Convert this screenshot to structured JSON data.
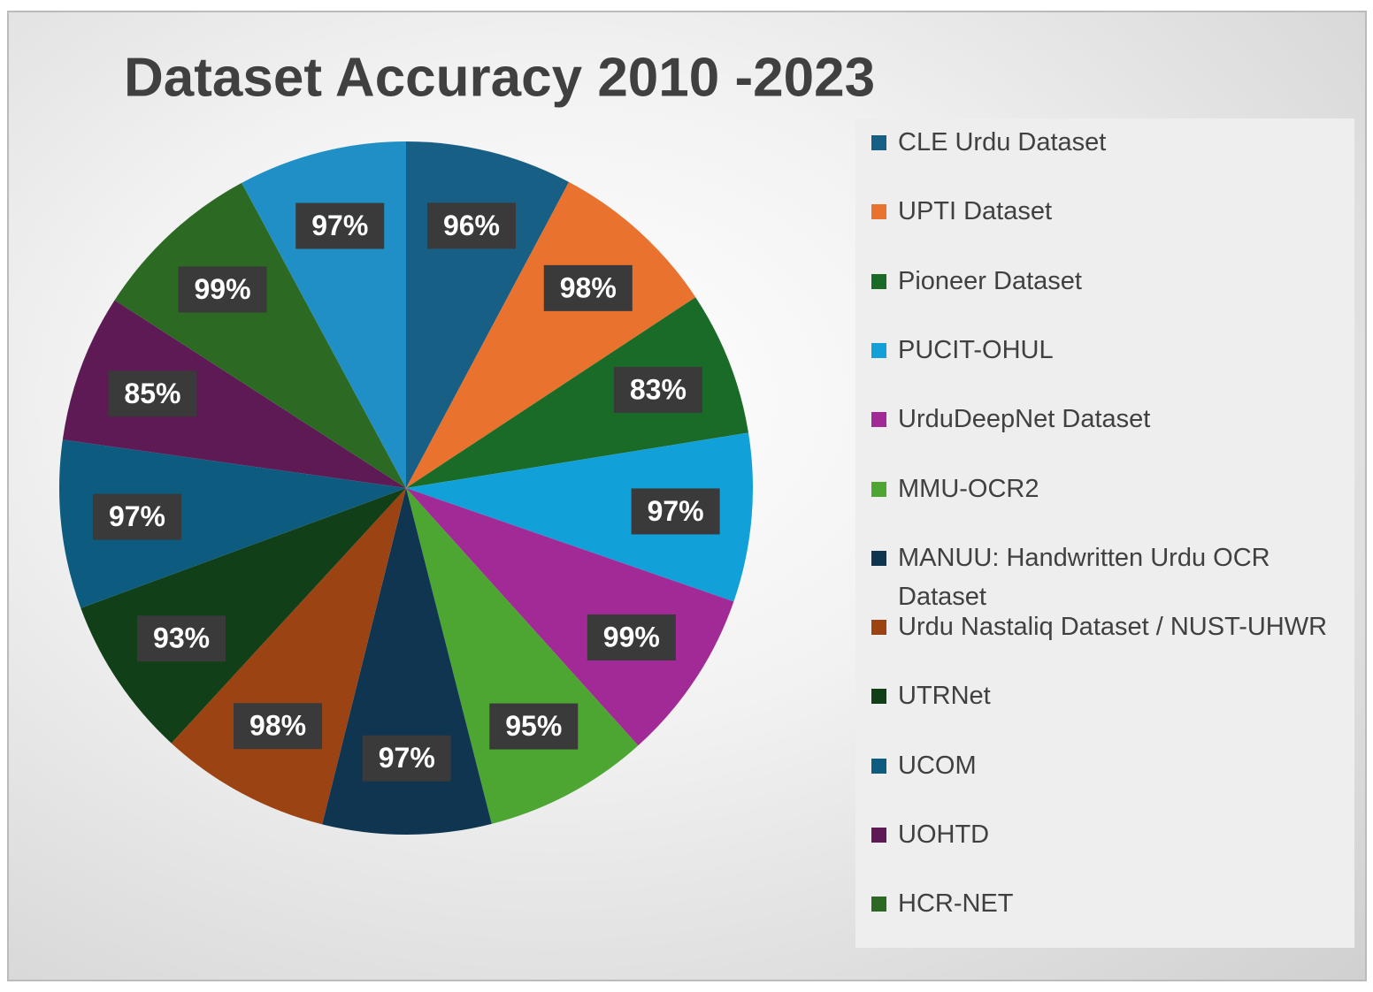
{
  "chart_data": {
    "type": "pie",
    "title": "Dataset Accuracy 2010 -2023",
    "categories": [
      "CLE Urdu Dataset",
      "UPTI Dataset",
      "Pioneer Dataset",
      "PUCIT-OHUL",
      "UrduDeepNet Dataset",
      "MMU-OCR2",
      "MANUU: Handwritten Urdu OCR Dataset",
      "Urdu Nastaliq Dataset / NUST-UHWR",
      "UTRNet",
      "UCOM",
      "UOHTD",
      "HCR-NET",
      null
    ],
    "series": [
      {
        "values": [
          96,
          98,
          83,
          97,
          99,
          95,
          97,
          98,
          93,
          97,
          85,
          99,
          97
        ],
        "value_labels": [
          "96%",
          "98%",
          "83%",
          "97%",
          "99%",
          "95%",
          "97%",
          "98%",
          "93%",
          "97%",
          "85%",
          "99%",
          "97%"
        ],
        "colors": [
          "#175f84",
          "#e8722e",
          "#1a6b27",
          "#12a0d8",
          "#a22a97",
          "#4ca631",
          "#0f3550",
          "#9b4312",
          "#103f18",
          "#0e5b80",
          "#5d1a55",
          "#2c6a24",
          "#1f8fc6"
        ]
      }
    ],
    "legend": "right"
  }
}
